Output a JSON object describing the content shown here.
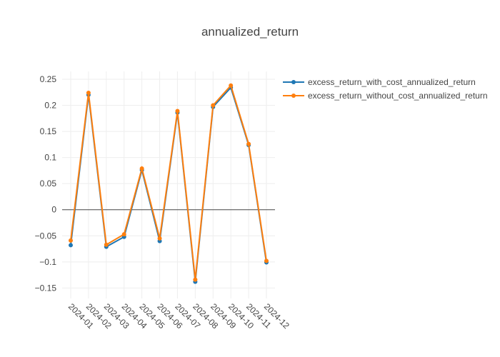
{
  "chart_data": {
    "type": "line",
    "title": "annualized_return",
    "xlabel": "",
    "ylabel": "",
    "categories": [
      "2024-01",
      "2024-02",
      "2024-03",
      "2024-04",
      "2024-05",
      "2024-06",
      "2024-07",
      "2024-08",
      "2024-09",
      "2024-10",
      "2024-11",
      "2024-12"
    ],
    "yticks": [
      -0.15,
      -0.1,
      -0.05,
      0,
      0.05,
      0.1,
      0.15,
      0.2,
      0.25
    ],
    "ytick_labels": [
      "−0.15",
      "−0.1",
      "−0.05",
      "0",
      "0.05",
      "0.1",
      "0.15",
      "0.2",
      "0.25"
    ],
    "ylim": [
      -0.17,
      0.265
    ],
    "grid": true,
    "legend": "top-right",
    "series": [
      {
        "name": "excess_return_with_cost_annualized_return",
        "color": "#1f77b4",
        "values": [
          -0.068,
          0.22,
          -0.071,
          -0.052,
          0.076,
          -0.06,
          0.186,
          -0.138,
          0.197,
          0.234,
          0.124,
          -0.101
        ]
      },
      {
        "name": "excess_return_without_cost_annualized_return",
        "color": "#ff7f0e",
        "values": [
          -0.059,
          0.224,
          -0.067,
          -0.047,
          0.079,
          -0.055,
          0.189,
          -0.134,
          0.2,
          0.238,
          0.126,
          -0.098
        ]
      }
    ]
  }
}
